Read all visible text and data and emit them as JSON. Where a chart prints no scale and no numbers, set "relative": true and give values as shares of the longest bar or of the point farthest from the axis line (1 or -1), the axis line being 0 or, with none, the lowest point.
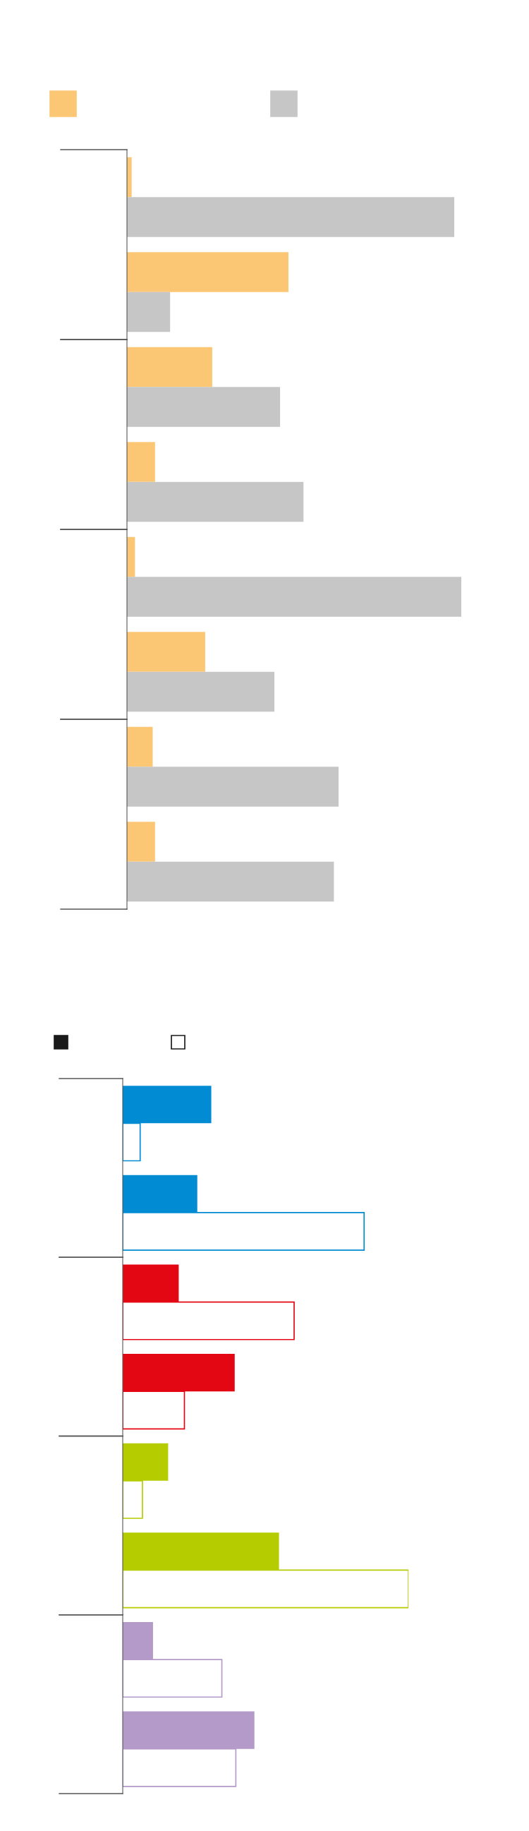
{
  "chart_data": [
    {
      "type": "bar",
      "orientation": "horizontal",
      "relative": true,
      "legend": false,
      "grid": false,
      "categories": [
        null,
        null,
        null,
        null,
        null,
        null,
        null,
        null
      ],
      "series": [
        {
          "color": "#fbc774",
          "values": [
            0.014,
            0.483,
            0.255,
            0.084,
            0.024,
            0.234,
            0.077,
            0.084
          ]
        },
        {
          "color": "#c6c6c6",
          "values": [
            0.979,
            0.129,
            0.458,
            0.528,
            1,
            0.441,
            0.633,
            0.619
          ]
        }
      ]
    },
    {
      "type": "bar",
      "orientation": "horizontal",
      "relative": true,
      "legend": false,
      "grid": false,
      "categories": [
        null,
        null,
        null,
        null,
        null,
        null,
        null,
        null
      ],
      "series": [
        {
          "colors": [
            "#008bd2",
            "#008bd2",
            "#e30613",
            "#e30613",
            "#b5cc00",
            "#b5cc00",
            "#b49ac9",
            "#b49ac9"
          ],
          "values": [
            0.31,
            0.261,
            0.196,
            0.392,
            0.159,
            0.547,
            0.106,
            0.461
          ]
        },
        {
          "color": "#ffffff",
          "values": [
            0.061,
            0.845,
            0.6,
            0.216,
            0.069,
            1,
            0.347,
            0.396
          ]
        }
      ]
    }
  ]
}
